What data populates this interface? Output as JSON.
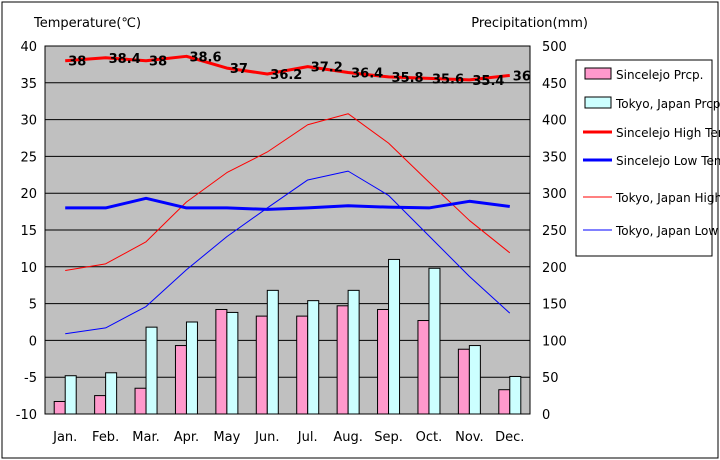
{
  "chart_data": {
    "type": "bar",
    "categories": [
      "Jan.",
      "Feb.",
      "Mar.",
      "Apr.",
      "May",
      "Jun.",
      "Jul.",
      "Aug.",
      "Sep.",
      "Oct.",
      "Nov.",
      "Dec."
    ],
    "left_axis": {
      "label": "Temperature(℃)",
      "ylim": [
        -10,
        40
      ],
      "ticks": [
        "40",
        "35",
        "30",
        "25",
        "20",
        "15",
        "10",
        "5",
        "0",
        "-5",
        "-10"
      ]
    },
    "right_axis": {
      "label": "Precipitation(mm)",
      "ylim": [
        0,
        500
      ],
      "ticks": [
        "500",
        "450",
        "400",
        "350",
        "300",
        "250",
        "200",
        "150",
        "100",
        "50",
        "0"
      ]
    },
    "grid": true,
    "legend_position": "right",
    "precip_series": [
      {
        "name": "Sincelejo Prcp.",
        "color": "#ff99cc",
        "values": [
          17,
          25,
          35,
          93,
          142,
          133,
          133,
          147,
          142,
          127,
          88,
          33
        ]
      },
      {
        "name": "Tokyo, Japan Prcp.",
        "color": "#ccffff",
        "values": [
          52,
          56,
          118,
          125,
          138,
          168,
          154,
          168,
          210,
          198,
          93,
          51
        ]
      }
    ],
    "temp_series": [
      {
        "name": "Sincelejo High Temp.",
        "color": "#ff0000",
        "width": 3,
        "values": [
          38,
          38.4,
          38,
          38.6,
          37,
          36.2,
          37.2,
          36.4,
          35.8,
          35.6,
          35.4,
          36
        ],
        "labels": [
          "38",
          "38.4",
          "38",
          "38.6",
          "37",
          "36.2",
          "37.2",
          "36.4",
          "35.8",
          "35.6",
          "35.4",
          "36"
        ]
      },
      {
        "name": "Sincelejo Low Temp.",
        "color": "#0000ff",
        "width": 3,
        "values": [
          18,
          18,
          19.3,
          18,
          18,
          17.8,
          18,
          18.3,
          18.1,
          18,
          18.9,
          18.2
        ]
      },
      {
        "name": "Tokyo, Japan High Temp.",
        "color": "#ff0000",
        "width": 1,
        "values": [
          9.5,
          10.4,
          13.4,
          18.8,
          22.8,
          25.6,
          29.3,
          30.8,
          26.8,
          21.5,
          16.3,
          11.9
        ]
      },
      {
        "name": "Tokyo, Japan Low Temp.",
        "color": "#0000ff",
        "width": 1,
        "values": [
          0.9,
          1.7,
          4.6,
          9.6,
          14.1,
          18.0,
          21.8,
          23.0,
          19.7,
          14.2,
          8.7,
          3.7
        ]
      }
    ],
    "legend_entries": [
      {
        "name": "Sincelejo Prcp.",
        "kind": "box",
        "color": "#ff99cc"
      },
      {
        "name": "Tokyo, Japan Prcp.",
        "kind": "box",
        "color": "#ccffff"
      },
      {
        "name": "Sincelejo High Temp.",
        "kind": "line",
        "color": "#ff0000",
        "width": 3
      },
      {
        "name": "Sincelejo Low Temp.",
        "kind": "line",
        "color": "#0000ff",
        "width": 3
      },
      {
        "name": "Tokyo, Japan High Temp.",
        "kind": "line",
        "color": "#ff0000",
        "width": 1
      },
      {
        "name": "Tokyo, Japan Low Temp.",
        "kind": "line",
        "color": "#0000ff",
        "width": 1
      }
    ]
  }
}
